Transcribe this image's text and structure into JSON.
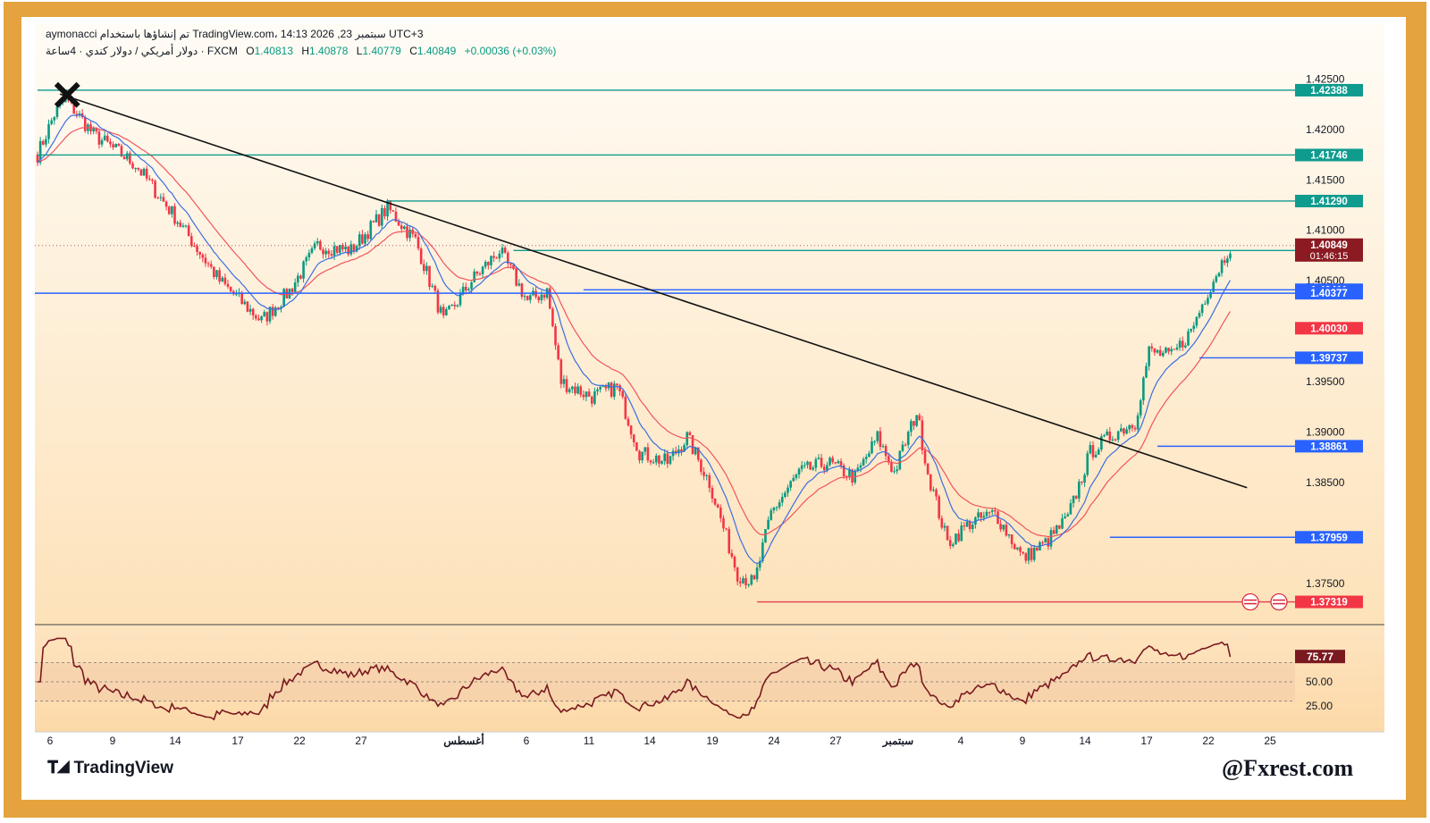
{
  "header": {
    "line1_user": "aymonacci",
    "line1_rest": "تم إنشاؤها باستخدام TradingView.com، 14:13 2026 ,23 سبتمبر UTC+3",
    "symbol": "دولار أمريكي / دولار كندي · 4ساعة · FXCM",
    "o_label": "O",
    "o_value": "1.40813",
    "h_label": "H",
    "h_value": "1.40878",
    "l_label": "L",
    "l_value": "1.40779",
    "c_label": "C",
    "c_value": "1.40849",
    "change": "+0.00036 (+0.03%)"
  },
  "footer": {
    "brand": "TradingView",
    "watermark": "@Fxrest.com"
  },
  "colors": {
    "frame": "#e4a33e",
    "up": "#089981",
    "down": "#f23645",
    "ema_fast": "#3b6fe0",
    "ema_slow": "#f0555c",
    "teal": "#0f9b8e",
    "blue": "#2962ff",
    "red": "#e04050"
  },
  "chart_data": {
    "type": "candlestick",
    "symbol": "USDCAD",
    "timeframe": "4h",
    "ylim": [
      1.372,
      1.426
    ],
    "price_ticks": [
      "1.42500",
      "1.42000",
      "1.41500",
      "1.41000",
      "1.40500",
      "1.39500",
      "1.39000",
      "1.38500",
      "1.37500"
    ],
    "x_ticks": [
      "6",
      "9",
      "14",
      "17",
      "22",
      "27",
      "أغسطس",
      "6",
      "11",
      "14",
      "19",
      "24",
      "27",
      "سبتمبر",
      "4",
      "9",
      "14",
      "17",
      "22",
      "25"
    ],
    "close_path": [
      {
        "i": 0,
        "p": 1.4175
      },
      {
        "i": 6,
        "p": 1.4215
      },
      {
        "i": 10,
        "p": 1.423
      },
      {
        "i": 20,
        "p": 1.4195
      },
      {
        "i": 35,
        "p": 1.4165
      },
      {
        "i": 50,
        "p": 1.411
      },
      {
        "i": 65,
        "p": 1.405
      },
      {
        "i": 80,
        "p": 1.401
      },
      {
        "i": 90,
        "p": 1.404
      },
      {
        "i": 100,
        "p": 1.4085
      },
      {
        "i": 112,
        "p": 1.408
      },
      {
        "i": 125,
        "p": 1.4122
      },
      {
        "i": 135,
        "p": 1.409
      },
      {
        "i": 145,
        "p": 1.401
      },
      {
        "i": 155,
        "p": 1.405
      },
      {
        "i": 165,
        "p": 1.408
      },
      {
        "i": 175,
        "p": 1.403
      },
      {
        "i": 182,
        "p": 1.404
      },
      {
        "i": 187,
        "p": 1.395
      },
      {
        "i": 198,
        "p": 1.3935
      },
      {
        "i": 207,
        "p": 1.3945
      },
      {
        "i": 215,
        "p": 1.388
      },
      {
        "i": 225,
        "p": 1.387
      },
      {
        "i": 232,
        "p": 1.3895
      },
      {
        "i": 240,
        "p": 1.385
      },
      {
        "i": 250,
        "p": 1.376
      },
      {
        "i": 256,
        "p": 1.375
      },
      {
        "i": 262,
        "p": 1.382
      },
      {
        "i": 272,
        "p": 1.386
      },
      {
        "i": 282,
        "p": 1.387
      },
      {
        "i": 292,
        "p": 1.3855
      },
      {
        "i": 300,
        "p": 1.3895
      },
      {
        "i": 306,
        "p": 1.386
      },
      {
        "i": 314,
        "p": 1.392
      },
      {
        "i": 318,
        "p": 1.386
      },
      {
        "i": 325,
        "p": 1.379
      },
      {
        "i": 333,
        "p": 1.381
      },
      {
        "i": 342,
        "p": 1.382
      },
      {
        "i": 352,
        "p": 1.3775
      },
      {
        "i": 360,
        "p": 1.379
      },
      {
        "i": 368,
        "p": 1.3815
      },
      {
        "i": 376,
        "p": 1.388
      },
      {
        "i": 385,
        "p": 1.39
      },
      {
        "i": 392,
        "p": 1.391
      },
      {
        "i": 397,
        "p": 1.398
      },
      {
        "i": 405,
        "p": 1.3975
      },
      {
        "i": 412,
        "p": 1.4
      },
      {
        "i": 418,
        "p": 1.404
      },
      {
        "i": 426,
        "p": 1.4085
      }
    ],
    "levels": [
      {
        "label": "1.42388",
        "price": 1.42388,
        "color": "#0f9b8e",
        "badge": "#0f9b8e"
      },
      {
        "label": "1.41746",
        "price": 1.41746,
        "color": "#0f9b8e",
        "badge": "#0f9b8e"
      },
      {
        "label": "1.41290",
        "price": 1.4129,
        "color": "#0f9b8e",
        "badge": "#0f9b8e"
      },
      {
        "label": "1.40800",
        "price": 1.408,
        "color": "#0f9b8e",
        "badge": "#0f9b8e"
      },
      {
        "label": "1.40411",
        "price": 1.40411,
        "color": "#2962ff",
        "badge": "#2962ff"
      },
      {
        "label": "1.40377",
        "price": 1.40377,
        "color": "#2962ff",
        "badge": "#2962ff"
      },
      {
        "label": "1.40030",
        "price": 1.4003,
        "color": null,
        "badge": "#f23645"
      },
      {
        "label": "1.39737",
        "price": 1.39737,
        "color": "#2962ff",
        "badge": "#2962ff"
      },
      {
        "label": "1.38861",
        "price": 1.38861,
        "color": "#2962ff",
        "badge": "#2962ff"
      },
      {
        "label": "1.37959",
        "price": 1.37959,
        "color": "#2962ff",
        "badge": "#2962ff"
      },
      {
        "label": "1.37319",
        "price": 1.37319,
        "color": "#e04050",
        "badge": "#f23645"
      }
    ],
    "last_price": {
      "label": "1.40849",
      "price": 1.40849,
      "countdown": "01:46:15"
    },
    "trendline": {
      "from": {
        "i": 8,
        "p": 1.4235
      },
      "to": {
        "i": 432,
        "p": 1.3845
      }
    },
    "rsi": {
      "value": "75.77",
      "value_num": 75.77,
      "ticks": [
        "50.00",
        "25.00"
      ],
      "levels": [
        70,
        50,
        30
      ]
    }
  }
}
